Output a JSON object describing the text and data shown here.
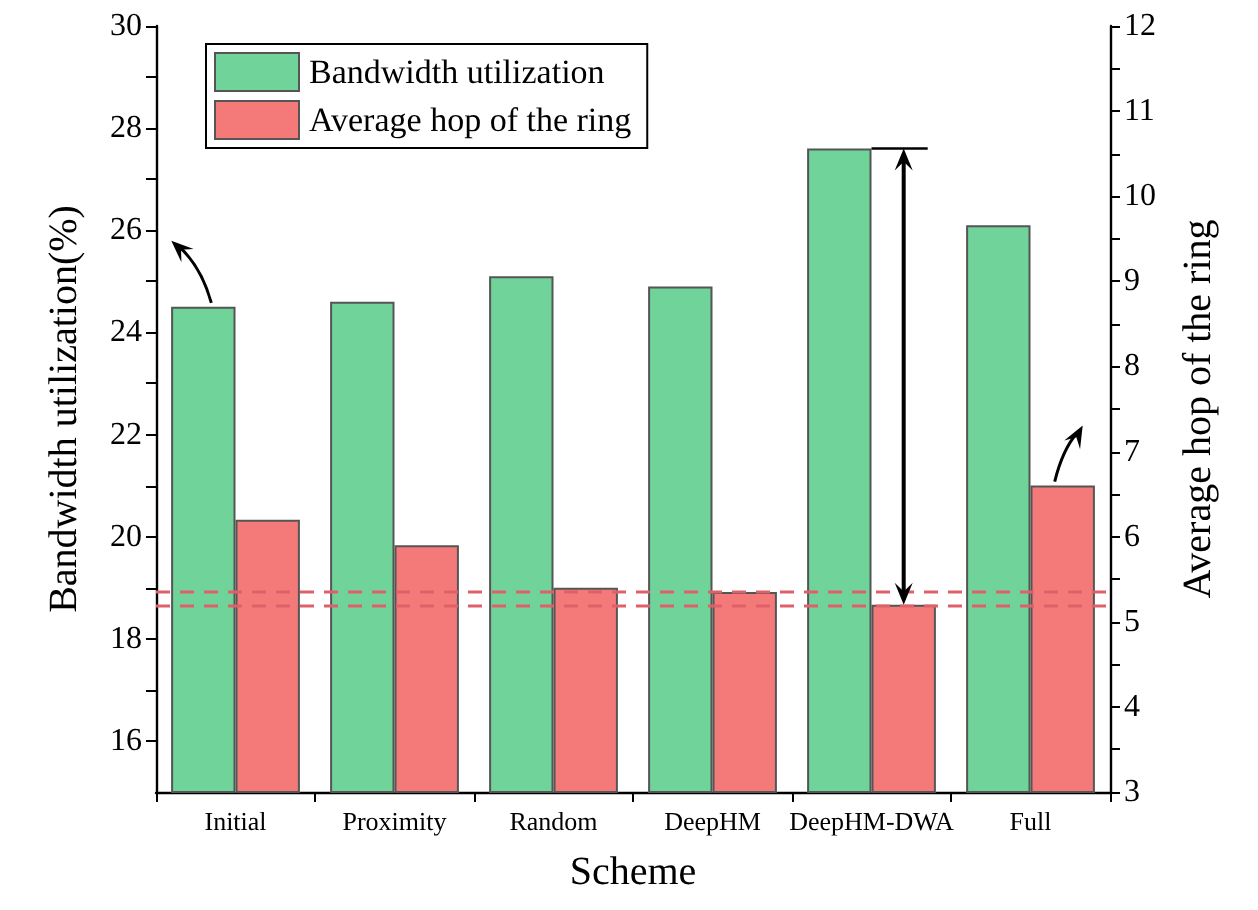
{
  "chart_data": {
    "type": "bar",
    "xlabel": "Scheme",
    "ylabel": "Bandwidth utilization(%)",
    "y2label": "Average hop of the ring",
    "categories": [
      "Initial",
      "Proximity",
      "Random",
      "DeepHM",
      "DeepHM-DWA",
      "Full"
    ],
    "series": [
      {
        "name": "Bandwidth utilization",
        "color": "#6fd39a",
        "values": [
          24.5,
          24.6,
          25.1,
          24.9,
          27.6,
          26.1
        ]
      },
      {
        "name": "Average hop of the ring",
        "color": "#f47a7a",
        "axis": "y2",
        "values": [
          6.2,
          5.9,
          5.4,
          5.35,
          5.2,
          6.6
        ]
      }
    ],
    "ylim": [
      15,
      30
    ],
    "yticks": [
      16,
      {
        "value": 17,
        "label": null
      },
      18,
      {
        "value": 19,
        "label": null
      },
      20,
      {
        "value": 21,
        "label": null
      },
      22,
      {
        "value": 23,
        "label": null
      },
      24,
      {
        "value": 25,
        "label": null
      },
      26,
      {
        "value": 27,
        "label": null
      },
      28,
      {
        "value": 29,
        "label": null
      },
      30
    ],
    "y2lim": [
      3,
      12
    ],
    "y2ticks": [
      3,
      {
        "value": 3.5,
        "label": null
      },
      4,
      {
        "value": 4.5,
        "label": null
      },
      5,
      {
        "value": 5.5,
        "label": null
      },
      6,
      {
        "value": 6.5,
        "label": null
      },
      7,
      {
        "value": 7.5,
        "label": null
      },
      8,
      {
        "value": 8.5,
        "label": null
      },
      9,
      {
        "value": 9.5,
        "label": null
      },
      10,
      {
        "value": 10.5,
        "label": null
      },
      11,
      {
        "value": 11.5,
        "label": null
      },
      12
    ],
    "ref_lines": [
      {
        "axis": "y2",
        "value": 5.35,
        "color": "#e0606a",
        "line_style": "dashed"
      },
      {
        "axis": "y2",
        "value": 5.2,
        "color": "#e0606a",
        "line_style": "dashed"
      }
    ],
    "legend": "top left",
    "grid": false
  }
}
